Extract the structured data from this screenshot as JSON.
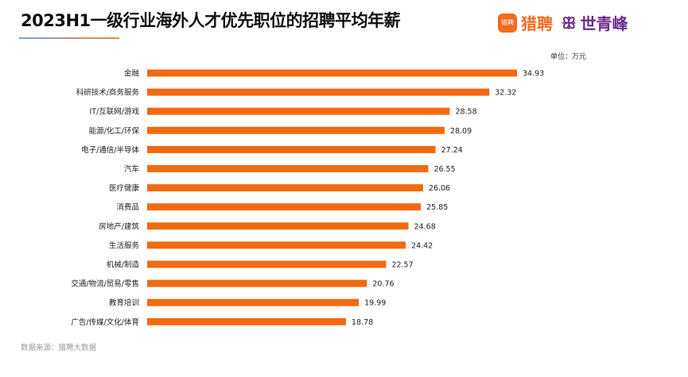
{
  "chart_data": {
    "type": "bar",
    "orientation": "horizontal",
    "title": "2023H1一级行业海外人才优先职位的招聘平均年薪",
    "unit_label": "单位：万元",
    "categories": [
      "金融",
      "科研技术/商务服务",
      "IT/互联网/游戏",
      "能源/化工/环保",
      "电子/通信/半导体",
      "汽车",
      "医疗健康",
      "消费品",
      "房地产/建筑",
      "生活服务",
      "机械/制造",
      "交通/物流/贸易/零售",
      "教育培训",
      "广告/传媒/文化/体育"
    ],
    "values": [
      34.93,
      32.32,
      28.58,
      28.09,
      27.24,
      26.55,
      26.06,
      25.85,
      24.68,
      24.42,
      22.57,
      20.76,
      19.99,
      18.78
    ],
    "xlim": [
      0,
      35
    ],
    "bar_color": "#f26a10",
    "grid": false
  },
  "logos": {
    "badge": "猎聘",
    "liepin": "猎聘",
    "sqf_mark": "ꕥ",
    "sqf": "世青峰"
  },
  "source": "数据来源：猎聘大数据"
}
